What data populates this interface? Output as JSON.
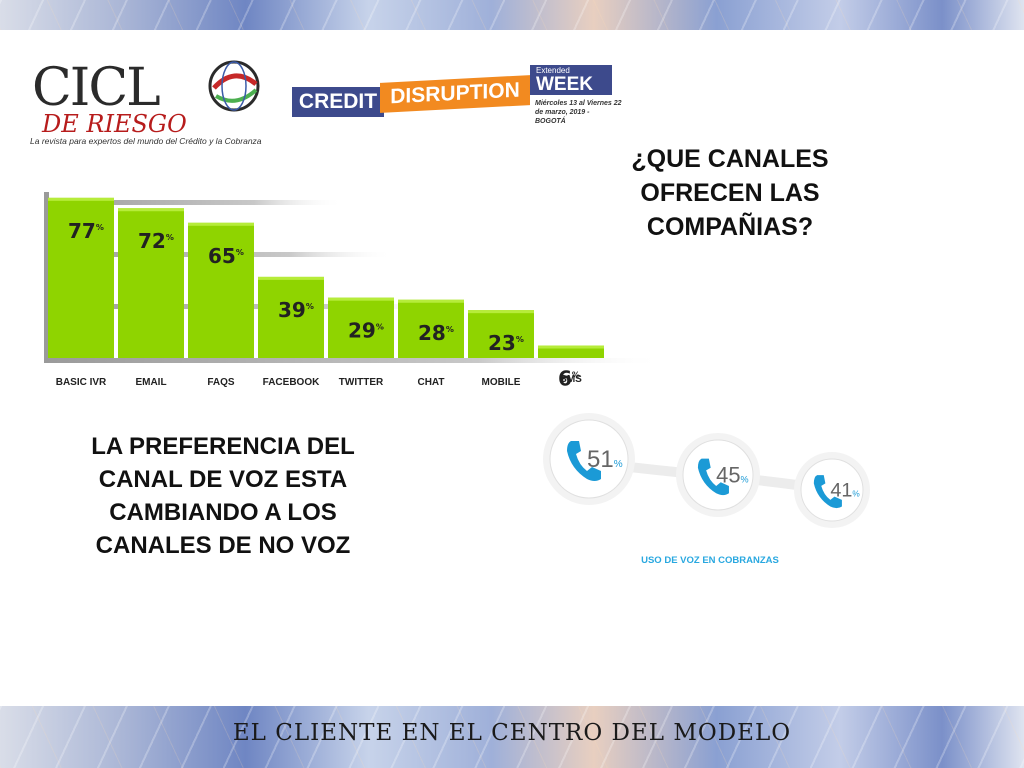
{
  "header": {
    "logo_main": "CICL",
    "logo_sub": "DE RIESGO",
    "logo_tagline": "La revista para expertos del mundo del Crédito y la Cobranza",
    "event_credit": "CREDIT",
    "event_disruption": "DISRUPTION",
    "event_extended": "Extended",
    "event_week": "WEEK",
    "event_date_1": "Miércoles 13 al Viernes 22",
    "event_date_2": "de marzo, 2019 - BOGOTÁ"
  },
  "headings": {
    "question": "¿QUE CANALES OFRECEN LAS COMPAÑIAS?",
    "statement": "LA PREFERENCIA DEL CANAL DE VOZ ESTA CAMBIANDO A LOS CANALES DE NO VOZ"
  },
  "chart_data": [
    {
      "type": "bar",
      "categories": [
        "BASIC IVR",
        "EMAIL",
        "FAQS",
        "FACEBOOK",
        "TWITTER",
        "CHAT",
        "MOBILE",
        "SMS"
      ],
      "values": [
        77,
        72,
        65,
        39,
        29,
        28,
        23,
        6
      ],
      "value_suffix": "%",
      "ylim": [
        0,
        100
      ],
      "grid": true,
      "color": "#8fd400"
    },
    {
      "type": "scatter",
      "title": "USO DE VOZ EN COBRANZAS",
      "values": [
        51,
        45,
        41
      ],
      "value_suffix": "%",
      "icon": "phone-icon",
      "color": "#1b9ad6"
    }
  ],
  "footer": {
    "title": "EL CLIENTE  EN  EL  CENTRO  DEL  MODELO"
  }
}
